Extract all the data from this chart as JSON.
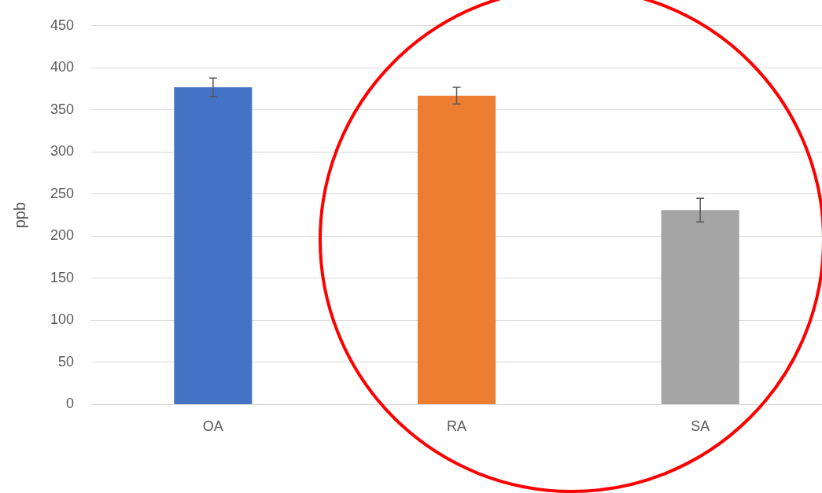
{
  "chart_data": {
    "type": "bar",
    "ylabel": "ppb",
    "categories": [
      "OA",
      "RA",
      "SA"
    ],
    "colors": [
      "#4472c4",
      "#ed7d31",
      "#a5a5a5"
    ],
    "values": [
      377,
      367,
      231
    ],
    "errors": [
      11,
      10,
      14
    ],
    "ylim": [
      0,
      450
    ],
    "yticks": [
      0,
      50,
      100,
      150,
      200,
      250,
      300,
      350,
      400,
      450
    ],
    "grid": "y",
    "legend": false
  }
}
